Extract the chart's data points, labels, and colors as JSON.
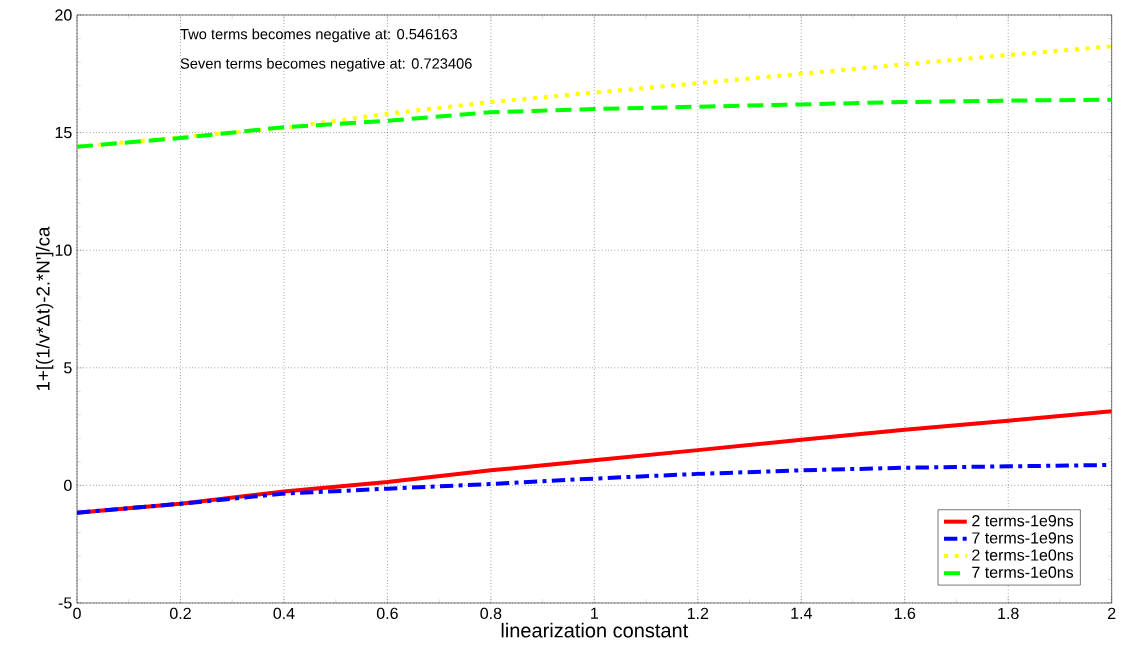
{
  "chart_data": {
    "type": "line",
    "xlabel": "linearization constant",
    "ylabel": "1+[(1/v*Δt)-2.*N']/ca",
    "x": [
      0,
      0.2,
      0.4,
      0.6,
      0.8,
      1,
      1.2,
      1.4,
      1.6,
      1.8,
      2
    ],
    "xlim": [
      0,
      2
    ],
    "xticks": [
      0,
      0.2,
      0.4,
      0.6,
      0.8,
      1,
      1.2,
      1.4,
      1.6,
      1.8,
      2
    ],
    "ylim": [
      -5,
      20
    ],
    "yticks": [
      -5,
      0,
      5,
      10,
      15,
      20
    ],
    "grid": true,
    "legend": "bottom right",
    "annotations": [
      "Two terms becomes negative at: 0.546163",
      "Seven terms becomes negative at: 0.723406"
    ],
    "series": [
      {
        "name": "2 terms-1e9ns",
        "color": "#ff0000",
        "line_style": "solid",
        "values": [
          -1.16,
          -0.78,
          -0.26,
          0.14,
          0.64,
          1.07,
          1.5,
          1.94,
          2.37,
          2.75,
          3.15
        ]
      },
      {
        "name": "7 terms-1e9ns",
        "color": "#0000ff",
        "line_style": "dashdot",
        "values": [
          -1.16,
          -0.78,
          -0.35,
          -0.14,
          0.06,
          0.29,
          0.49,
          0.64,
          0.75,
          0.81,
          0.87
        ]
      },
      {
        "name": "2 terms-1e0ns",
        "color": "#ffff00",
        "line_style": "dotted",
        "values": [
          14.4,
          14.8,
          15.2,
          15.8,
          16.3,
          16.7,
          17.1,
          17.5,
          17.9,
          18.3,
          18.67
        ]
      },
      {
        "name": "7 terms-1e0ns",
        "color": "#00ff00",
        "line_style": "dashed",
        "values": [
          14.4,
          14.77,
          15.23,
          15.5,
          15.87,
          16.0,
          16.1,
          16.2,
          16.3,
          16.36,
          16.4
        ]
      }
    ]
  }
}
